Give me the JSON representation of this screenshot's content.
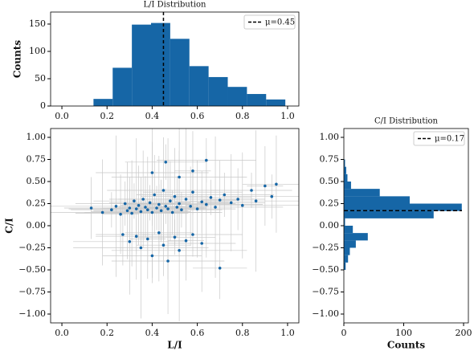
{
  "chart_data": [
    {
      "type": "histogram",
      "title": "L/I Distribution",
      "y_label": "Counts",
      "bins": [
        0.14,
        0.225,
        0.31,
        0.395,
        0.48,
        0.565,
        0.65,
        0.735,
        0.82,
        0.905,
        0.99
      ],
      "values": [
        13,
        70,
        149,
        152,
        123,
        73,
        53,
        35,
        22,
        12
      ],
      "color": "#1666a6",
      "mean": {
        "value": 0.45,
        "label": "μ=0.45"
      },
      "xlim": [
        -0.05,
        1.05
      ],
      "xticks": [
        {
          "value": 0,
          "label": "0.0"
        },
        {
          "value": 0.2,
          "label": "0.2"
        },
        {
          "value": 0.4,
          "label": "0.4"
        },
        {
          "value": 0.6,
          "label": "0.6"
        },
        {
          "value": 0.8,
          "label": "0.8"
        },
        {
          "value": 1,
          "label": "1.0"
        }
      ],
      "ylim": [
        0,
        172
      ],
      "yticks": [
        0,
        50,
        100,
        150
      ]
    },
    {
      "type": "scatter",
      "x_label": "L/I",
      "y_label": "C/I",
      "color": "#1666a6",
      "errorbar_color": "#c8c8c8",
      "x": [
        0.13,
        0.18,
        0.22,
        0.24,
        0.26,
        0.28,
        0.29,
        0.3,
        0.31,
        0.32,
        0.33,
        0.34,
        0.35,
        0.36,
        0.37,
        0.38,
        0.39,
        0.4,
        0.41,
        0.42,
        0.43,
        0.44,
        0.45,
        0.46,
        0.47,
        0.48,
        0.49,
        0.5,
        0.51,
        0.52,
        0.53,
        0.55,
        0.57,
        0.58,
        0.6,
        0.62,
        0.64,
        0.66,
        0.68,
        0.7,
        0.72,
        0.75,
        0.78,
        0.8,
        0.84,
        0.86,
        0.9,
        0.93,
        0.95,
        0.27,
        0.3,
        0.33,
        0.35,
        0.38,
        0.4,
        0.43,
        0.45,
        0.47,
        0.5,
        0.52,
        0.55,
        0.58,
        0.62,
        0.7,
        0.4,
        0.46,
        0.52,
        0.58,
        0.64
      ],
      "values": [
        0.2,
        0.15,
        0.18,
        0.22,
        0.13,
        0.25,
        0.17,
        0.2,
        0.14,
        0.28,
        0.19,
        0.23,
        0.16,
        0.3,
        0.21,
        0.18,
        0.26,
        0.15,
        0.35,
        0.2,
        0.24,
        0.17,
        0.4,
        0.22,
        0.19,
        0.28,
        0.15,
        0.33,
        0.21,
        0.25,
        0.18,
        0.3,
        0.22,
        0.38,
        0.19,
        0.27,
        0.24,
        0.32,
        0.21,
        0.29,
        0.35,
        0.26,
        0.3,
        0.23,
        0.4,
        0.28,
        0.45,
        0.33,
        0.47,
        -0.1,
        -0.18,
        -0.12,
        -0.25,
        -0.15,
        -0.34,
        -0.08,
        -0.22,
        -0.4,
        -0.13,
        -0.28,
        -0.17,
        -0.1,
        -0.2,
        -0.48,
        0.6,
        0.72,
        0.55,
        0.62,
        0.74
      ],
      "xerr": [
        0.12,
        0.25,
        0.18,
        0.3,
        0.08,
        0.22,
        0.15,
        0.12,
        0.25,
        0.18,
        0.3,
        0.08,
        0.22,
        0.15,
        0.12,
        0.25,
        0.18,
        0.3,
        0.08,
        0.22,
        0.15,
        0.12,
        0.25,
        0.18,
        0.3,
        0.08,
        0.22,
        0.15,
        0.12,
        0.25,
        0.18,
        0.3,
        0.08,
        0.22,
        0.15,
        0.12,
        0.25,
        0.18,
        0.3,
        0.08,
        0.22,
        0.15,
        0.12,
        0.25,
        0.18,
        0.3,
        0.08,
        0.22,
        0.15,
        0.12,
        0.25,
        0.18,
        0.3,
        0.08,
        0.22,
        0.15,
        0.12,
        0.25,
        0.18,
        0.3,
        0.08,
        0.22,
        0.15,
        0.12,
        0.25,
        0.18,
        0.3,
        0.08,
        0.22
      ],
      "yerr": [
        0.35,
        0.6,
        0.2,
        0.8,
        0.45,
        0.25,
        0.55,
        0.35,
        0.6,
        0.2,
        0.8,
        0.45,
        0.25,
        0.55,
        0.35,
        0.6,
        0.2,
        0.8,
        0.45,
        0.25,
        0.55,
        0.35,
        0.6,
        0.2,
        0.8,
        0.45,
        0.25,
        0.55,
        0.35,
        0.6,
        0.2,
        0.8,
        0.45,
        0.25,
        0.55,
        0.35,
        0.6,
        0.2,
        0.8,
        0.45,
        0.25,
        0.55,
        0.35,
        0.6,
        0.2,
        0.8,
        0.45,
        0.25,
        0.55,
        0.35,
        0.6,
        0.2,
        0.8,
        0.45,
        0.25,
        0.55,
        0.35,
        0.6,
        0.2,
        0.8,
        0.45,
        0.25,
        0.55,
        0.35,
        0.6,
        0.2,
        0.8,
        0.45,
        0.25
      ],
      "xlim": [
        -0.05,
        1.05
      ],
      "xticks": [
        {
          "value": 0,
          "label": "0.0"
        },
        {
          "value": 0.2,
          "label": "0.2"
        },
        {
          "value": 0.4,
          "label": "0.4"
        },
        {
          "value": 0.6,
          "label": "0.6"
        },
        {
          "value": 0.8,
          "label": "0.8"
        },
        {
          "value": 1,
          "label": "1.0"
        }
      ],
      "ylim": [
        -1.1,
        1.1
      ],
      "yticks": [
        {
          "value": 1,
          "label": "1.00"
        },
        {
          "value": 0.75,
          "label": "0.75"
        },
        {
          "value": 0.5,
          "label": "0.50"
        },
        {
          "value": 0.25,
          "label": "0.25"
        },
        {
          "value": 0,
          "label": "0.00"
        },
        {
          "value": -0.25,
          "label": "−0.25"
        },
        {
          "value": -0.5,
          "label": "−0.50"
        },
        {
          "value": -0.75,
          "label": "−0.75"
        },
        {
          "value": -1,
          "label": "−1.00"
        }
      ]
    },
    {
      "type": "histogram",
      "orientation": "horizontal",
      "title": "C/I Distribution",
      "x_label": "Counts",
      "bins": [
        -0.5,
        -0.417,
        -0.333,
        -0.25,
        -0.167,
        -0.083,
        0,
        0.083,
        0.167,
        0.25,
        0.333,
        0.417,
        0.5,
        0.583,
        0.667,
        0.75
      ],
      "values": [
        3,
        7,
        10,
        20,
        40,
        15,
        2,
        150,
        197,
        110,
        60,
        12,
        6,
        4,
        2
      ],
      "color": "#1666a6",
      "mean": {
        "value": 0.17,
        "label": "μ=0.17"
      },
      "xlim": [
        0,
        208
      ],
      "xticks": [
        0,
        100,
        200
      ],
      "ylim": [
        -1.1,
        1.1
      ],
      "yticks": [
        {
          "value": 1,
          "label": "1.00"
        },
        {
          "value": 0.75,
          "label": "0.75"
        },
        {
          "value": 0.5,
          "label": "0.50"
        },
        {
          "value": 0.25,
          "label": "0.25"
        },
        {
          "value": 0,
          "label": "0.00"
        },
        {
          "value": -0.25,
          "label": "−0.25"
        },
        {
          "value": -0.5,
          "label": "−0.50"
        },
        {
          "value": -0.75,
          "label": "−0.75"
        },
        {
          "value": -1,
          "label": "−1.00"
        }
      ]
    }
  ]
}
